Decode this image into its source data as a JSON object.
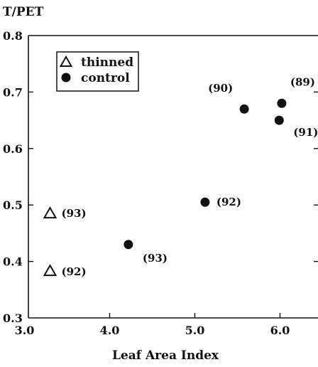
{
  "chart_data": {
    "type": "scatter",
    "title": "",
    "ylabel": "T/PET",
    "xlabel": "Leaf Area Index",
    "xlim": [
      3.0,
      6.5
    ],
    "ylim": [
      0.3,
      0.8
    ],
    "x_ticks": [
      "3.0",
      "4.0",
      "5.0",
      "6.0"
    ],
    "y_ticks": [
      "0.3",
      "0.4",
      "0.5",
      "0.6",
      "0.7",
      "0.8"
    ],
    "grid": false,
    "legend_position": "top-left",
    "series": [
      {
        "name": "thinned",
        "marker": "open-triangle",
        "points": [
          {
            "x": 3.3,
            "y": 0.485,
            "label": "(93)"
          },
          {
            "x": 3.3,
            "y": 0.383,
            "label": "(92)"
          }
        ]
      },
      {
        "name": "control",
        "marker": "filled-circle",
        "points": [
          {
            "x": 4.22,
            "y": 0.43,
            "label": "(93)"
          },
          {
            "x": 5.12,
            "y": 0.505,
            "label": "(92)"
          },
          {
            "x": 5.58,
            "y": 0.67,
            "label": "(90)"
          },
          {
            "x": 5.99,
            "y": 0.65,
            "label": "(91)"
          },
          {
            "x": 6.02,
            "y": 0.68,
            "label": "(89)"
          }
        ]
      }
    ]
  }
}
